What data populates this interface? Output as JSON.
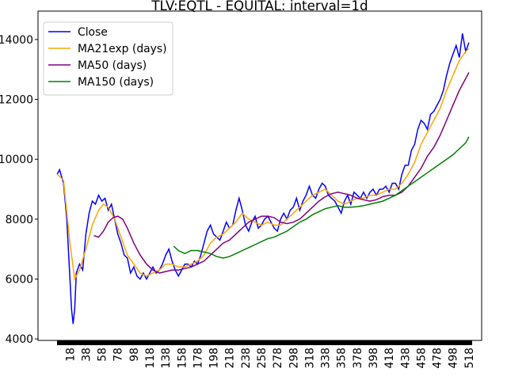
{
  "chart_data": {
    "type": "line",
    "title": "TLV:EQTL - EQUITAL: interval=1d",
    "xlim": [
      -22,
      534
    ],
    "ylim": [
      3950,
      14950
    ],
    "xticks": [
      18,
      38,
      58,
      78,
      98,
      118,
      138,
      158,
      178,
      198,
      218,
      238,
      258,
      278,
      298,
      318,
      338,
      358,
      378,
      398,
      418,
      438,
      458,
      478,
      498,
      518
    ],
    "yticks": [
      4000,
      6000,
      8000,
      10000,
      12000,
      14000
    ],
    "legend": "upper left",
    "series": [
      {
        "name": "Close",
        "color": "#0000ff",
        "x": [
          2,
          5,
          10,
          14,
          18,
          20,
          22,
          24,
          26,
          30,
          34,
          38,
          42,
          46,
          50,
          54,
          58,
          62,
          66,
          70,
          74,
          78,
          82,
          86,
          90,
          94,
          98,
          102,
          106,
          110,
          114,
          118,
          122,
          126,
          130,
          134,
          138,
          142,
          146,
          150,
          154,
          158,
          162,
          166,
          170,
          174,
          178,
          182,
          186,
          190,
          194,
          198,
          202,
          206,
          210,
          214,
          218,
          222,
          226,
          230,
          234,
          238,
          242,
          246,
          250,
          254,
          258,
          262,
          266,
          270,
          274,
          278,
          282,
          286,
          290,
          294,
          298,
          302,
          306,
          310,
          314,
          318,
          322,
          326,
          330,
          334,
          338,
          342,
          346,
          350,
          354,
          358,
          362,
          366,
          370,
          374,
          378,
          382,
          386,
          390,
          394,
          398,
          402,
          406,
          410,
          414,
          418,
          422,
          426,
          430,
          434,
          438,
          442,
          446,
          450,
          454,
          458,
          462,
          466,
          470,
          474,
          478,
          482,
          486,
          490,
          494,
          498,
          502,
          506,
          510,
          514,
          518
        ],
        "values": [
          9500,
          9650,
          9200,
          8000,
          6000,
          5000,
          4500,
          5000,
          6200,
          6500,
          6300,
          7500,
          8200,
          8600,
          8500,
          8800,
          8600,
          8700,
          8300,
          8500,
          8000,
          7500,
          7200,
          6800,
          6700,
          6200,
          6400,
          6100,
          6000,
          6200,
          6000,
          6200,
          6400,
          6200,
          6300,
          6500,
          6800,
          7000,
          6600,
          6300,
          6100,
          6300,
          6500,
          6500,
          6400,
          6600,
          6500,
          6800,
          7200,
          7600,
          7800,
          7500,
          7400,
          7300,
          7600,
          7900,
          7700,
          7800,
          8300,
          8700,
          8300,
          7800,
          7600,
          7900,
          8100,
          7700,
          7800,
          8000,
          8100,
          7900,
          7700,
          7600,
          8000,
          8200,
          8000,
          8300,
          8400,
          8700,
          8300,
          8600,
          8800,
          9100,
          8800,
          8700,
          9000,
          9200,
          9100,
          8800,
          8700,
          8600,
          8400,
          8200,
          8600,
          8800,
          8500,
          8900,
          8800,
          8700,
          8900,
          8700,
          8900,
          9000,
          8800,
          9000,
          9000,
          9100,
          8900,
          9200,
          9200,
          9000,
          9500,
          9800,
          9800,
          10300,
          10500,
          11000,
          11300,
          11200,
          11000,
          11500,
          11600,
          11800,
          12000,
          12300,
          12800,
          13200,
          13500,
          13800,
          13400,
          14200,
          13600,
          13900
        ]
      },
      {
        "name": "MA21exp (days)",
        "color": "#ffa500",
        "x": [
          2,
          10,
          18,
          24,
          30,
          38,
          46,
          54,
          60,
          66,
          74,
          82,
          90,
          98,
          106,
          114,
          122,
          130,
          138,
          146,
          154,
          162,
          170,
          178,
          186,
          194,
          202,
          210,
          218,
          226,
          234,
          242,
          250,
          258,
          266,
          274,
          282,
          290,
          298,
          306,
          314,
          322,
          330,
          338,
          346,
          354,
          362,
          370,
          378,
          386,
          394,
          402,
          410,
          418,
          426,
          434,
          442,
          450,
          458,
          466,
          474,
          482,
          490,
          498,
          506,
          514,
          518
        ],
        "values": [
          9500,
          9300,
          7200,
          6000,
          6300,
          7000,
          7800,
          8300,
          8500,
          8400,
          8000,
          7400,
          6800,
          6500,
          6200,
          6100,
          6200,
          6300,
          6500,
          6500,
          6400,
          6400,
          6500,
          6600,
          6800,
          7200,
          7400,
          7500,
          7700,
          7900,
          8200,
          8000,
          7900,
          7800,
          7900,
          7800,
          7800,
          8000,
          8200,
          8400,
          8600,
          8800,
          8900,
          9000,
          8800,
          8600,
          8500,
          8600,
          8700,
          8700,
          8800,
          8800,
          8900,
          9000,
          9000,
          9200,
          9500,
          9900,
          10500,
          10900,
          11300,
          11700,
          12300,
          12800,
          13300,
          13600,
          13700
        ]
      },
      {
        "name": "MA50 (days)",
        "color": "#800080",
        "x": [
          48,
          54,
          60,
          66,
          72,
          78,
          84,
          90,
          98,
          106,
          114,
          122,
          130,
          138,
          146,
          154,
          162,
          170,
          178,
          186,
          194,
          202,
          210,
          218,
          226,
          234,
          242,
          250,
          258,
          266,
          274,
          282,
          290,
          298,
          306,
          314,
          322,
          330,
          338,
          346,
          354,
          362,
          370,
          378,
          386,
          394,
          402,
          410,
          418,
          426,
          434,
          442,
          450,
          458,
          466,
          474,
          482,
          490,
          498,
          506,
          514,
          518
        ],
        "values": [
          7450,
          7400,
          7600,
          7900,
          8050,
          8100,
          8000,
          7700,
          7200,
          6800,
          6500,
          6300,
          6200,
          6250,
          6300,
          6300,
          6350,
          6400,
          6500,
          6600,
          6800,
          7000,
          7200,
          7300,
          7500,
          7700,
          7900,
          8000,
          8100,
          8100,
          8050,
          7900,
          7850,
          7900,
          8000,
          8200,
          8400,
          8600,
          8750,
          8850,
          8900,
          8850,
          8800,
          8700,
          8650,
          8600,
          8650,
          8750,
          8800,
          8800,
          8900,
          9100,
          9400,
          9700,
          10100,
          10400,
          10800,
          11300,
          11800,
          12300,
          12700,
          12900
        ]
      },
      {
        "name": "MA150 (days)",
        "color": "#008000",
        "x": [
          148,
          154,
          162,
          170,
          178,
          186,
          194,
          202,
          210,
          218,
          226,
          234,
          242,
          250,
          258,
          266,
          274,
          282,
          290,
          298,
          306,
          314,
          322,
          330,
          338,
          346,
          354,
          362,
          370,
          378,
          386,
          394,
          402,
          410,
          418,
          426,
          434,
          442,
          450,
          458,
          466,
          474,
          482,
          490,
          498,
          506,
          514,
          518
        ],
        "values": [
          7100,
          6950,
          6850,
          6950,
          6950,
          6900,
          6850,
          6750,
          6700,
          6750,
          6850,
          6950,
          7050,
          7150,
          7250,
          7350,
          7400,
          7500,
          7600,
          7750,
          7900,
          8000,
          8150,
          8250,
          8350,
          8400,
          8450,
          8400,
          8400,
          8420,
          8450,
          8500,
          8550,
          8600,
          8700,
          8800,
          8950,
          9100,
          9250,
          9400,
          9550,
          9700,
          9850,
          10000,
          10150,
          10350,
          10550,
          10750
        ]
      }
    ]
  }
}
